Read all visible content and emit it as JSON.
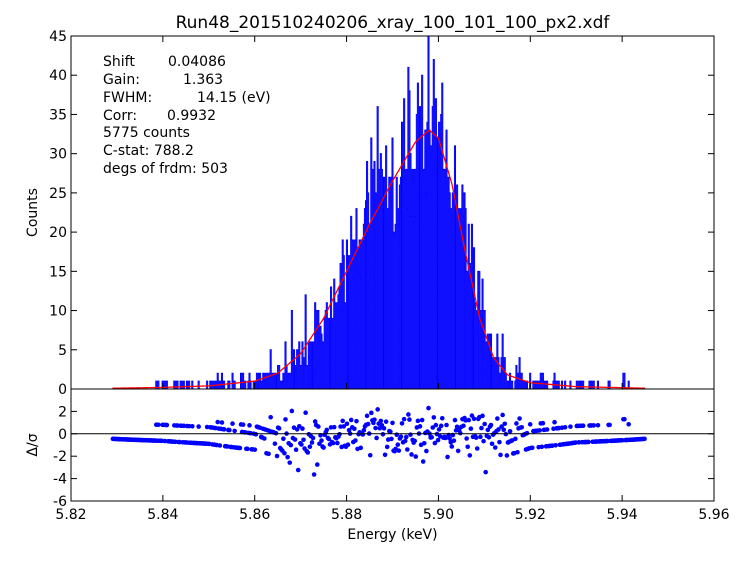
{
  "chart_data": [
    {
      "panel": "main",
      "type": "line",
      "title": "Run48_201510240206_xray_100_101_100_px2.xdf",
      "xlabel": "",
      "ylabel": "Counts",
      "xlim": [
        5.82,
        5.96
      ],
      "ylim": [
        0,
        45
      ],
      "yticks": [
        0,
        5,
        10,
        15,
        20,
        25,
        30,
        35,
        40,
        45
      ],
      "annotations": [
        {
          "label": "Shift",
          "value": "0.04086"
        },
        {
          "label": "Gain:",
          "value": "1.363"
        },
        {
          "label": "FWHM:",
          "value": "14.15 (eV)"
        },
        {
          "label": "Corr:",
          "value": "0.9932"
        }
      ],
      "annotation_lines": [
        "5775 counts",
        "C-stat: 788.2",
        "degs of frdm: 503"
      ],
      "series": [
        {
          "name": "data",
          "color": "#0000ff",
          "kind": "step-histogram",
          "x_start": 5.829,
          "x_end": 5.945,
          "bins": 503
        },
        {
          "name": "fit",
          "color": "#ff0000",
          "kind": "line",
          "peak_x": 5.898,
          "peak_y": 33,
          "x": [
            5.829,
            5.84,
            5.85,
            5.86,
            5.865,
            5.87,
            5.875,
            5.88,
            5.885,
            5.89,
            5.895,
            5.898,
            5.9,
            5.903,
            5.906,
            5.909,
            5.912,
            5.915,
            5.92,
            5.93,
            5.945
          ],
          "y": [
            0.1,
            0.2,
            0.4,
            1.0,
            2.0,
            4.5,
            9.0,
            15.0,
            21.0,
            26.5,
            31.5,
            33.0,
            32.0,
            26.0,
            17.0,
            9.0,
            4.0,
            1.8,
            0.8,
            0.3,
            0.1
          ]
        }
      ]
    },
    {
      "panel": "residuals",
      "type": "scatter",
      "xlabel": "Energy (keV)",
      "ylabel": "Δ/σ",
      "xlim": [
        5.82,
        5.96
      ],
      "ylim": [
        -6,
        4
      ],
      "xticks": [
        "5.82",
        "5.84",
        "5.86",
        "5.88",
        "5.90",
        "5.92",
        "5.94",
        "5.96"
      ],
      "yticks": [
        -6,
        -4,
        -2,
        0,
        2
      ],
      "series": [
        {
          "name": "residuals",
          "color": "#0000ff"
        }
      ]
    }
  ]
}
